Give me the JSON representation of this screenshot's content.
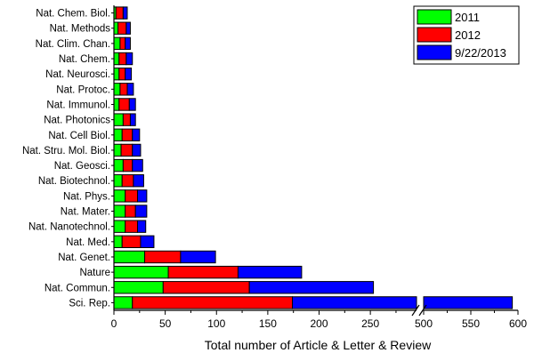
{
  "chart_data": {
    "type": "bar",
    "orientation": "horizontal",
    "stacked": true,
    "xlabel": "Total number of Article & Letter & Review",
    "ylabel": "",
    "xlim": [
      0,
      600
    ],
    "axis_break": [
      295,
      500
    ],
    "xticks": [
      0,
      50,
      100,
      150,
      200,
      250,
      500,
      550,
      600
    ],
    "grid": false,
    "legend_position": "top-right",
    "categories": [
      "Sci. Rep.",
      "Nat. Commun.",
      "Nature",
      "Nat. Genet.",
      "Nat. Med.",
      "Nat. Nanotechnol.",
      "Nat. Mater.",
      "Nat. Phys.",
      "Nat. Biotechnol.",
      "Nat. Geosci.",
      "Nat. Stru. Mol. Biol.",
      "Nat. Cell Biol.",
      "Nat. Photonics",
      "Nat. Immunol.",
      "Nat. Protoc.",
      "Nat. Neurosci.",
      "Nat. Chem.",
      "Nat. Clim. Chan.",
      "Nat. Methods",
      "Nat. Chem. Biol."
    ],
    "series": [
      {
        "name": "2011",
        "color": "#00ff00",
        "values": [
          18,
          48,
          53,
          30,
          8,
          11,
          11,
          11,
          8,
          9,
          7,
          8,
          9,
          5,
          6,
          5,
          5,
          6,
          4,
          2
        ]
      },
      {
        "name": "2012",
        "color": "#ff0000",
        "values": [
          156,
          84,
          68,
          35,
          18,
          12,
          10,
          12,
          11,
          9,
          11,
          10,
          7,
          10,
          7,
          6,
          7,
          5,
          8,
          7
        ]
      },
      {
        "name": "9/22/2013",
        "color": "#0000ff",
        "values": [
          420,
          121,
          62,
          34,
          13,
          8,
          11,
          9,
          10,
          10,
          8,
          7,
          5,
          6,
          6,
          6,
          6,
          5,
          4,
          4
        ]
      }
    ]
  }
}
